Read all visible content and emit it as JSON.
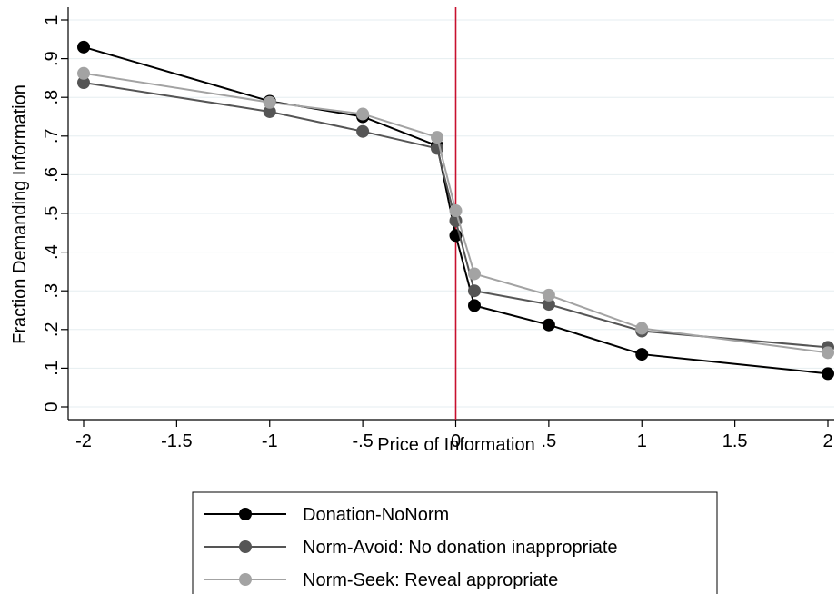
{
  "chart_data": {
    "type": "line",
    "xlabel": "Price of Information",
    "ylabel": "Fraction Demanding Information",
    "xlim": [
      -2,
      2
    ],
    "ylim": [
      0,
      1
    ],
    "x_ticks": [
      "-2",
      "-1.5",
      "-1",
      "-.5",
      "0",
      ".5",
      "1",
      "1.5",
      "2"
    ],
    "y_ticks": [
      "0",
      ".1",
      ".2",
      ".3",
      ".4",
      ".5",
      ".6",
      ".7",
      ".8",
      ".9",
      "1"
    ],
    "grid": true,
    "reference_line": {
      "x": 0,
      "color": "#c8102e"
    },
    "legend_position": "bottom",
    "x": [
      -2,
      -1,
      -0.5,
      -0.1,
      0,
      0.1,
      0.5,
      1,
      2
    ],
    "series": [
      {
        "name": "Donation-NoNorm",
        "color": "#000000",
        "values": [
          0.93,
          0.79,
          0.75,
          0.675,
          0.443,
          0.262,
          0.212,
          0.136,
          0.086
        ]
      },
      {
        "name": "Norm-Avoid: No donation inappropriate",
        "color": "#555555",
        "values": [
          0.838,
          0.763,
          0.712,
          0.668,
          0.481,
          0.3,
          0.265,
          0.196,
          0.154
        ]
      },
      {
        "name": "Norm-Seek: Reveal appropriate",
        "color": "#a3a3a3",
        "values": [
          0.862,
          0.787,
          0.757,
          0.697,
          0.507,
          0.344,
          0.289,
          0.203,
          0.14
        ]
      }
    ]
  }
}
